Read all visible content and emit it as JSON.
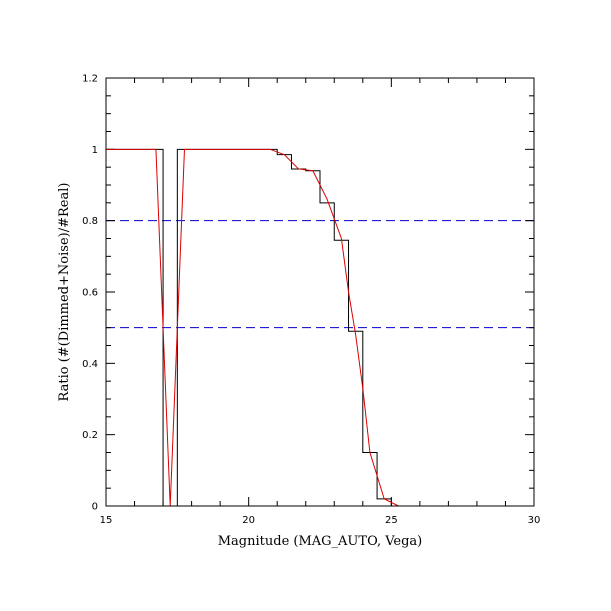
{
  "chart_data": {
    "type": "line",
    "title": "",
    "xlabel": "Magnitude (MAG_AUTO, Vega)",
    "ylabel": "Ratio (#(Dimmed+Noise)/#Real)",
    "xlim": [
      15,
      30
    ],
    "ylim": [
      0,
      1.2
    ],
    "x_ticks": [
      15,
      20,
      25,
      30
    ],
    "x_tick_labels": [
      "15",
      "20",
      "25",
      "30"
    ],
    "y_ticks": [
      0,
      0.2,
      0.4,
      0.6,
      0.8,
      1,
      1.2
    ],
    "y_tick_labels": [
      "0",
      "0.2",
      "0.4",
      "0.6",
      "0.8",
      "1",
      "1.2"
    ],
    "grid": false,
    "reference_lines": [
      {
        "y": 0.8,
        "color": "#0000cc",
        "style": "dashed"
      },
      {
        "y": 0.5,
        "color": "#0000cc",
        "style": "dashed"
      }
    ],
    "series": [
      {
        "kind": "step-histogram",
        "color": "#000000",
        "bins": [
          {
            "x0": 15.0,
            "x1": 17.0,
            "y": 1.0
          },
          {
            "x0": 17.0,
            "x1": 17.5,
            "y": 0.0
          },
          {
            "x0": 17.5,
            "x1": 21.0,
            "y": 1.0
          },
          {
            "x0": 21.0,
            "x1": 21.5,
            "y": 0.985
          },
          {
            "x0": 21.5,
            "x1": 22.0,
            "y": 0.945
          },
          {
            "x0": 22.0,
            "x1": 22.5,
            "y": 0.94
          },
          {
            "x0": 22.5,
            "x1": 23.0,
            "y": 0.85
          },
          {
            "x0": 23.0,
            "x1": 23.5,
            "y": 0.745
          },
          {
            "x0": 23.5,
            "x1": 24.0,
            "y": 0.49
          },
          {
            "x0": 24.0,
            "x1": 24.5,
            "y": 0.15
          },
          {
            "x0": 24.5,
            "x1": 25.0,
            "y": 0.02
          },
          {
            "x0": 25.0,
            "x1": 30.0,
            "y": 0.0
          }
        ]
      },
      {
        "kind": "smooth-curve",
        "color": "#dd0000",
        "x": [
          15.0,
          16.75,
          17.25,
          17.75,
          20.75,
          21.25,
          21.75,
          22.25,
          22.75,
          23.25,
          23.5,
          23.75,
          24.0,
          24.25,
          24.75,
          25.25,
          30.0
        ],
        "y": [
          1.0,
          1.0,
          0.0,
          1.0,
          1.0,
          0.985,
          0.945,
          0.94,
          0.86,
          0.75,
          0.6,
          0.48,
          0.33,
          0.15,
          0.02,
          0.0,
          0.0
        ]
      }
    ]
  }
}
